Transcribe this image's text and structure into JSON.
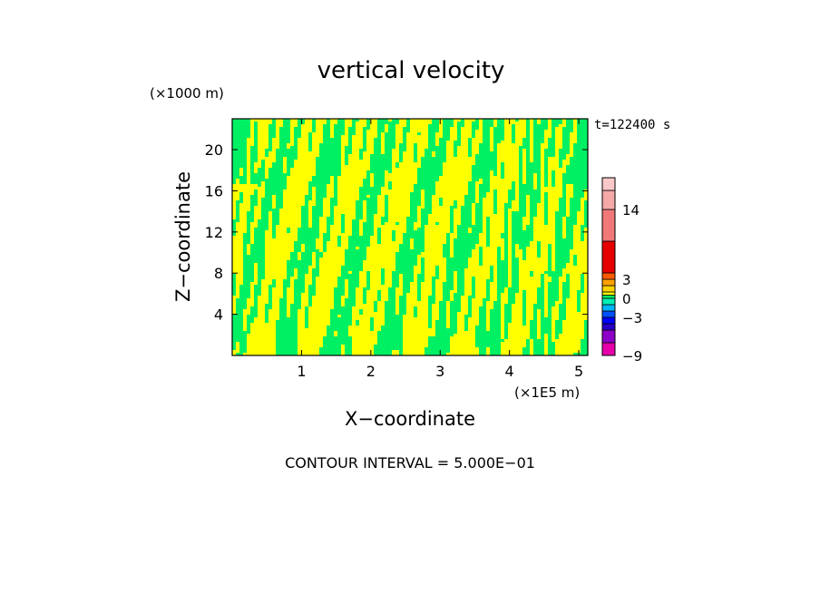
{
  "chart_data": {
    "type": "heatmap",
    "title": "vertical velocity",
    "xlabel": "X−coordinate",
    "ylabel": "Z−coordinate",
    "x_unit": "(×1E5 m)",
    "y_unit": "(×1000 m)",
    "time_label": "t=122400 s",
    "footer": "CONTOUR INTERVAL = 5.000E−01",
    "xlim": [
      0,
      5.13
    ],
    "ylim": [
      0,
      23
    ],
    "x_ticks": [
      {
        "value": 1,
        "label": "1"
      },
      {
        "value": 2,
        "label": "2"
      },
      {
        "value": 3,
        "label": "3"
      },
      {
        "value": 4,
        "label": "4"
      },
      {
        "value": 5,
        "label": "5"
      }
    ],
    "y_ticks": [
      {
        "value": 4,
        "label": "4"
      },
      {
        "value": 8,
        "label": "8"
      },
      {
        "value": 12,
        "label": "12"
      },
      {
        "value": 16,
        "label": "16"
      },
      {
        "value": 20,
        "label": "20"
      }
    ],
    "colorbar": {
      "range": [
        -9,
        19
      ],
      "labels": [
        {
          "value": 14,
          "label": "14"
        },
        {
          "value": 3,
          "label": "3"
        },
        {
          "value": 0,
          "label": "0"
        },
        {
          "value": -3,
          "label": "−3"
        },
        {
          "value": -9,
          "label": "−9"
        }
      ],
      "levels": [
        {
          "from": -9,
          "to": -7,
          "color": "#e600aa"
        },
        {
          "from": -7,
          "to": -5,
          "color": "#8c00c8"
        },
        {
          "from": -5,
          "to": -4,
          "color": "#2800c8"
        },
        {
          "from": -4,
          "to": -3,
          "color": "#0000ff"
        },
        {
          "from": -3,
          "to": -2,
          "color": "#0050ff"
        },
        {
          "from": -2,
          "to": -1,
          "color": "#00b4ff"
        },
        {
          "from": -1,
          "to": 0,
          "color": "#00f0b4"
        },
        {
          "from": 0,
          "to": 0.5,
          "color": "#00f064"
        },
        {
          "from": 0.5,
          "to": 1,
          "color": "#ffff00"
        },
        {
          "from": 1,
          "to": 2,
          "color": "#ffd200"
        },
        {
          "from": 2,
          "to": 3,
          "color": "#ffa000"
        },
        {
          "from": 3,
          "to": 4,
          "color": "#ff5a00"
        },
        {
          "from": 4,
          "to": 9,
          "color": "#e60000"
        },
        {
          "from": 9,
          "to": 14,
          "color": "#f07878"
        },
        {
          "from": 14,
          "to": 17,
          "color": "#f5a8a8"
        },
        {
          "from": 17,
          "to": 19,
          "color": "#fac8c8"
        }
      ]
    },
    "field_colors": {
      "low": "#00f064",
      "high": "#ffff00"
    }
  }
}
